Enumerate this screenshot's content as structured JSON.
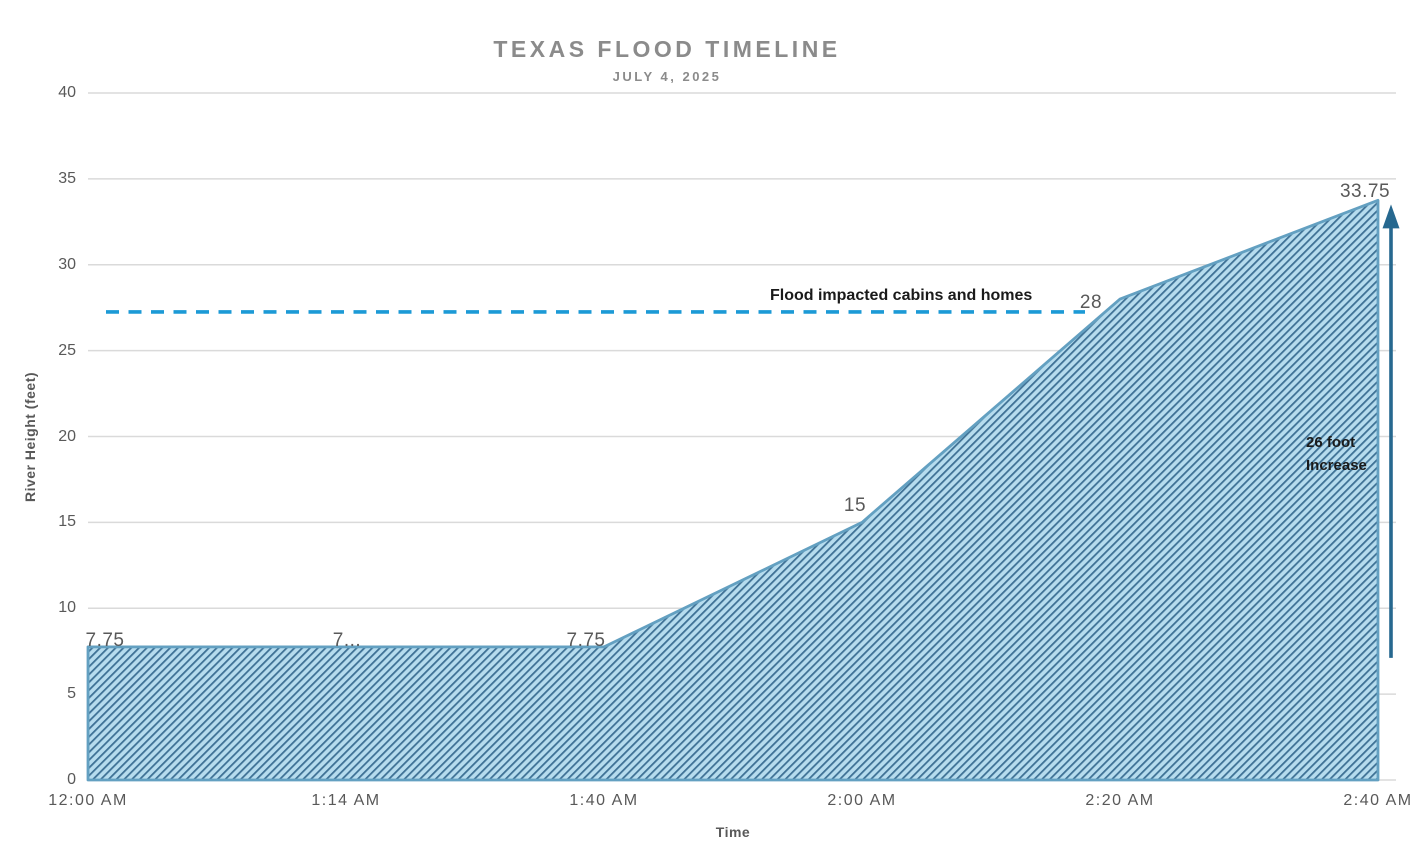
{
  "chart_data": {
    "type": "area",
    "title": "TEXAS FLOOD TIMELINE",
    "subtitle": "JULY 4, 2025",
    "xlabel": "Time",
    "ylabel": "River Height (feet)",
    "categories": [
      "12:00 AM",
      "1:14 AM",
      "1:40 AM",
      "2:00 AM",
      "2:20 AM",
      "2:40 AM"
    ],
    "series": [
      {
        "name": "River Height",
        "values": [
          7.75,
          7.75,
          7.75,
          15,
          28,
          33.75
        ]
      }
    ],
    "point_labels": [
      "7.75",
      "7...",
      "7.75",
      "15",
      "28",
      "33.75"
    ],
    "ylim": [
      0,
      40
    ],
    "yticks": [
      0,
      5,
      10,
      15,
      20,
      25,
      30,
      35,
      40
    ],
    "grid": "horizontal-only",
    "legend": "none",
    "threshold_line": {
      "value": 27.25,
      "style": "dashed",
      "color": "#1C9AD6",
      "label": "Flood impacted cabins and homes"
    },
    "annotations": [
      {
        "type": "arrow",
        "direction": "up",
        "lines": [
          "26 foot",
          "Increase"
        ],
        "from_value": 7.75,
        "to_value": 33.75,
        "color": "#26688F"
      }
    ],
    "colors": {
      "area_fill_base": "#B6DCEE",
      "area_hatch": "#3E7195",
      "area_edge": "#63A0C1",
      "gridline": "#DADADA",
      "tick_label": "#595959",
      "title_text": "#8B8B8B",
      "annotation_text": "#1A1A1A",
      "threshold": "#1C9AD6",
      "arrow": "#26688F"
    }
  }
}
